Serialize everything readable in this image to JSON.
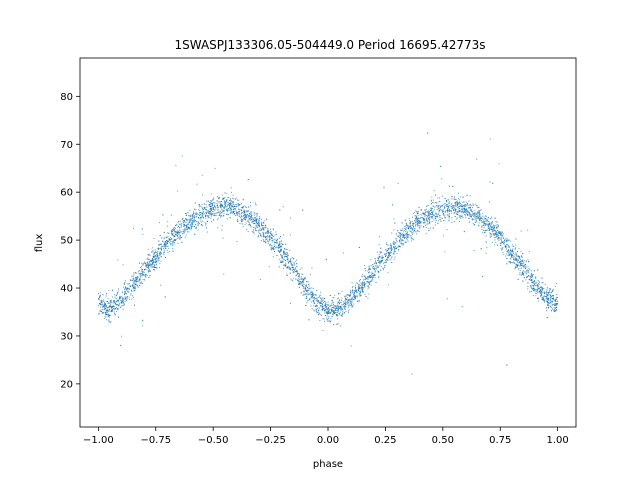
{
  "chart_data": {
    "type": "scatter",
    "title": "1SWASPJ133306.05-504449.0 Period 16695.42773s",
    "xlabel": "phase",
    "ylabel": "flux",
    "xlim": [
      -1.08,
      1.08
    ],
    "ylim": [
      11,
      88
    ],
    "xticks": [
      -1.0,
      -0.75,
      -0.5,
      -0.25,
      0.0,
      0.25,
      0.5,
      0.75,
      1.0
    ],
    "xtick_labels": [
      "−1.00",
      "−0.75",
      "−0.50",
      "−0.25",
      "0.00",
      "0.25",
      "0.50",
      "0.75",
      "1.00"
    ],
    "yticks": [
      20,
      30,
      40,
      50,
      60,
      70,
      80
    ],
    "ytick_labels": [
      "20",
      "30",
      "40",
      "50",
      "60",
      "70",
      "80"
    ],
    "grid": false,
    "marker_color": "#1f77b4",
    "series": [
      {
        "x": [
          -1.0,
          -0.95,
          -0.9,
          -0.85,
          -0.8,
          -0.75,
          -0.7,
          -0.65,
          -0.6,
          -0.55,
          -0.5,
          -0.45,
          -0.4,
          -0.35,
          -0.3,
          -0.25,
          -0.2,
          -0.15,
          -0.1,
          -0.05,
          0.0,
          0.05,
          0.1,
          0.15,
          0.2,
          0.25,
          0.3,
          0.35,
          0.4,
          0.45,
          0.5,
          0.55,
          0.6,
          0.65,
          0.7,
          0.75,
          0.8,
          0.85,
          0.9,
          0.95,
          1.0
        ],
        "y": [
          37.0,
          35.5,
          37.5,
          40.5,
          43.5,
          46.5,
          49.5,
          52.0,
          54.0,
          55.5,
          56.5,
          57.0,
          56.5,
          55.0,
          53.0,
          50.5,
          47.5,
          44.0,
          40.0,
          37.0,
          35.5,
          35.5,
          37.5,
          40.5,
          43.5,
          46.5,
          49.5,
          52.0,
          54.0,
          55.5,
          56.5,
          57.0,
          56.5,
          55.0,
          53.0,
          50.5,
          47.5,
          44.0,
          40.5,
          38.0,
          36.5
        ]
      }
    ]
  }
}
